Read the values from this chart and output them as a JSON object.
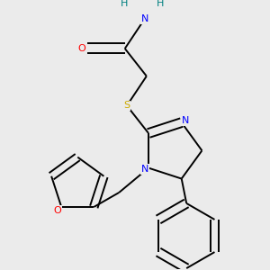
{
  "background_color": "#ebebeb",
  "bond_color": "#000000",
  "atom_colors": {
    "N": "#0000ff",
    "O": "#ff0000",
    "S": "#ccaa00",
    "H": "#008080",
    "C": "#000000"
  },
  "figsize": [
    3.0,
    3.0
  ],
  "dpi": 100
}
